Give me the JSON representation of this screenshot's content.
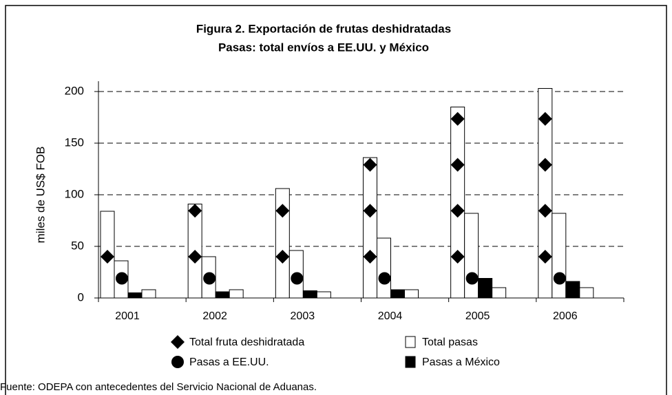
{
  "chart_data": {
    "type": "bar",
    "title": "Figura 2. Exportación de frutas deshidratadas",
    "subtitle": "Pasas: total envíos a EE.UU. y México",
    "y_label": "miles de US$ FOB",
    "categories": [
      "2001",
      "2002",
      "2003",
      "2004",
      "2005",
      "2006"
    ],
    "series": [
      {
        "name": "Total fruta deshidratada",
        "color": "#000000",
        "marker": "diamond",
        "values": [
          84,
          91,
          106,
          136,
          185,
          203
        ]
      },
      {
        "name": "Total pasas",
        "color": "#ffffff",
        "values": [
          36,
          40,
          46,
          58,
          82,
          82
        ]
      },
      {
        "name": "Pasas a EE.UU.",
        "color": "#000000",
        "marker": "circle",
        "values": [
          19,
          19,
          19,
          19,
          19,
          19
        ]
      },
      {
        "name": "Pasas a México",
        "color": "#000000",
        "values": [
          5,
          6,
          7,
          8,
          19,
          16
        ]
      },
      {
        "color": "#ffffff",
        "values": [
          8,
          8,
          6,
          8,
          10,
          10
        ]
      }
    ],
    "ylim": [
      0,
      210
    ],
    "yticks": [
      0,
      50,
      100,
      150,
      200
    ],
    "grid": true,
    "source": "Fuente: ODEPA con antecedentes del Servicio Nacional de Aduanas."
  }
}
